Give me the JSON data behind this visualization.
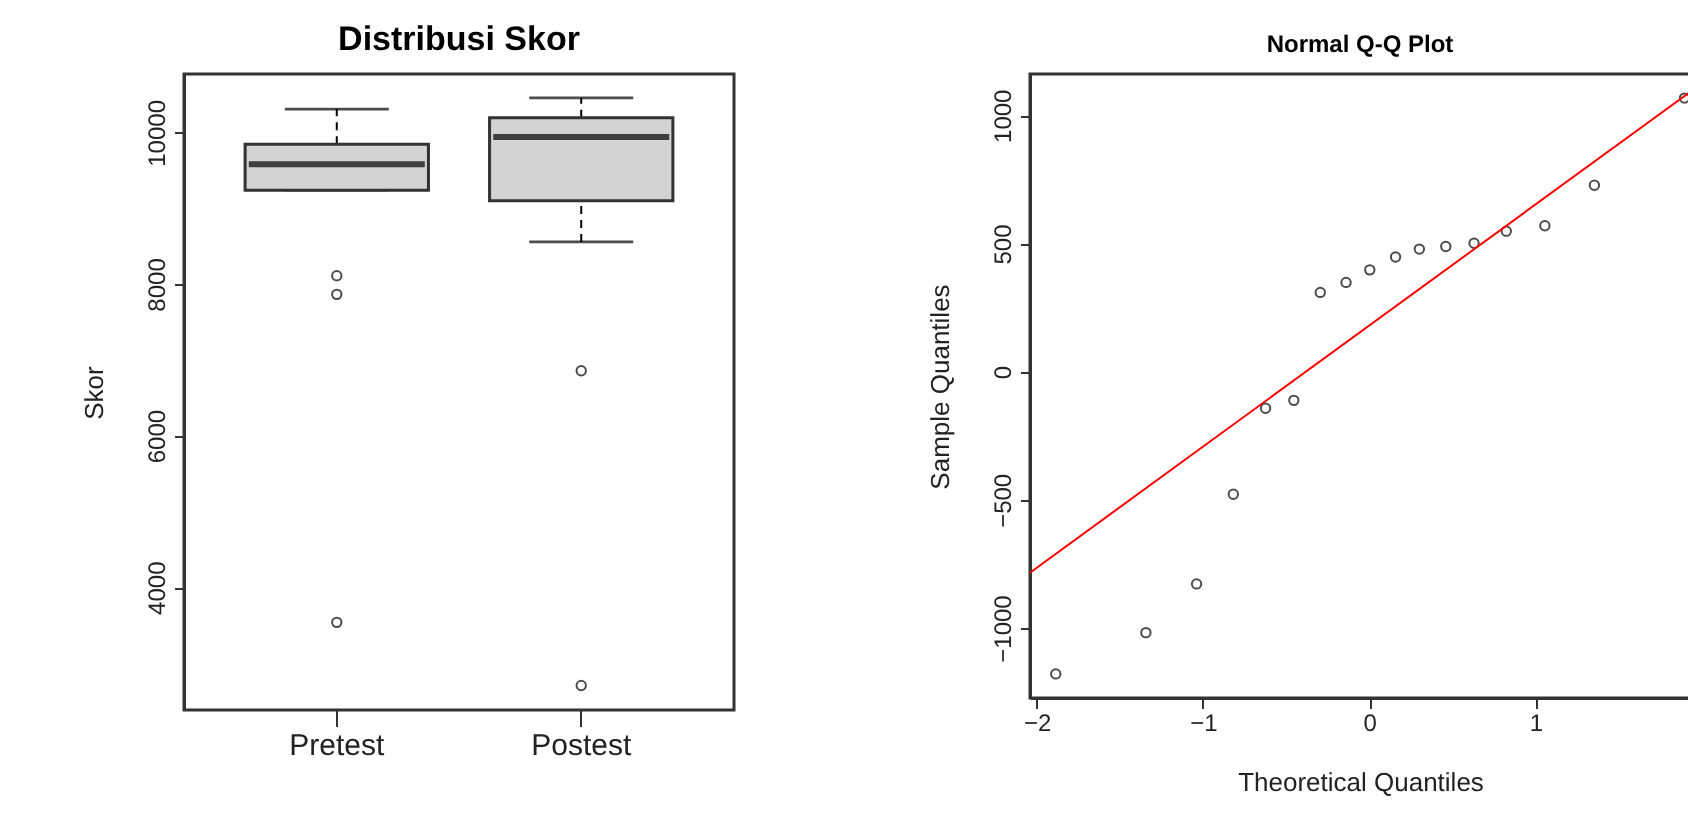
{
  "chart_data": [
    {
      "type": "box",
      "title": "Distribusi Skor",
      "ylabel": "Skor",
      "categories": [
        "Pretest",
        "Postest"
      ],
      "ylim": [
        2380,
        10770
      ],
      "yticks": [
        4000,
        6000,
        8000,
        10000
      ],
      "boxes": [
        {
          "low": 9238,
          "q1": 9238,
          "median": 9580,
          "q3": 9842,
          "high": 10307,
          "outliers": [
            8108,
            7863,
            3536
          ]
        },
        {
          "low": 8555,
          "q1": 9098,
          "median": 9939,
          "q3": 10193,
          "high": 10455,
          "outliers": [
            6856,
            2704
          ]
        }
      ]
    },
    {
      "type": "scatter",
      "title": "Normal Q-Q Plot",
      "xlabel": "Theoretical Quantiles",
      "ylabel": "Sample Quantiles",
      "xlim": [
        -2.04,
        1.93
      ],
      "xticks": [
        -2,
        -1,
        0,
        1
      ],
      "ylim": [
        -1273,
        1161
      ],
      "yticks": [
        -1000,
        -500,
        0,
        500,
        1000
      ],
      "series": [
        {
          "type": "scatter",
          "color": "#000000",
          "marker": "circle",
          "x": [
            -1.885,
            -1.343,
            -1.038,
            -0.817,
            -0.623,
            -0.453,
            -0.294,
            -0.139,
            0.004,
            0.159,
            0.302,
            0.461,
            0.631,
            0.825,
            1.057,
            1.355,
            1.897
          ],
          "values": [
            -1179,
            -1018,
            -828,
            -478,
            -143,
            -112,
            309,
            348,
            397,
            447,
            478,
            488,
            501,
            548,
            569,
            727,
            1067
          ]
        },
        {
          "type": "line",
          "color": "#ff0000",
          "x": [
            -2.04,
            1.93
          ],
          "values": [
            -784,
            1091
          ]
        }
      ]
    }
  ]
}
